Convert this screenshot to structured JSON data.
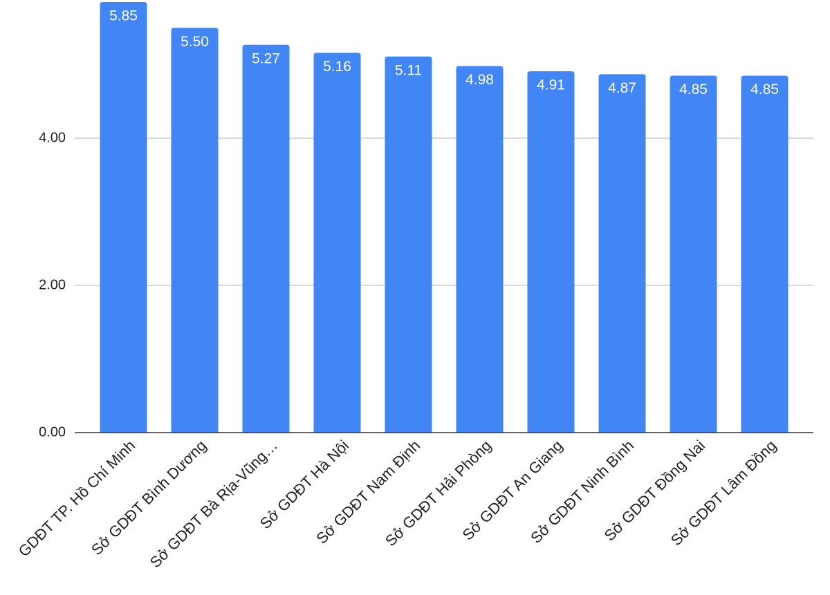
{
  "chart_data": {
    "type": "bar",
    "categories": [
      "GDĐT TP. Hồ Chí Minh",
      "Sở GDĐT Bình Dương",
      "Sở GDĐT Bà Rịa-Vũng…",
      "Sở GDĐT Hà Nội",
      "Sở GDĐT Nam Định",
      "Sở GDĐT Hải Phòng",
      "Sở GDĐT An Giang",
      "Sở GDĐT Ninh Bình",
      "Sở GDĐT Đồng Nai",
      "Sở GDĐT Lâm Đồng"
    ],
    "values": [
      5.85,
      5.5,
      5.27,
      5.16,
      5.11,
      4.98,
      4.91,
      4.87,
      4.85,
      4.85
    ],
    "value_labels": [
      "5.85",
      "5.50",
      "5.27",
      "5.16",
      "5.11",
      "4.98",
      "4.91",
      "4.87",
      "4.85",
      "4.85"
    ],
    "color": "#4285f4",
    "ylim": [
      0,
      5.85
    ],
    "yticks": [
      {
        "value": 0,
        "label": "0.00"
      },
      {
        "value": 2,
        "label": "2.00"
      },
      {
        "value": 4,
        "label": "4.00"
      }
    ],
    "grid": true
  }
}
